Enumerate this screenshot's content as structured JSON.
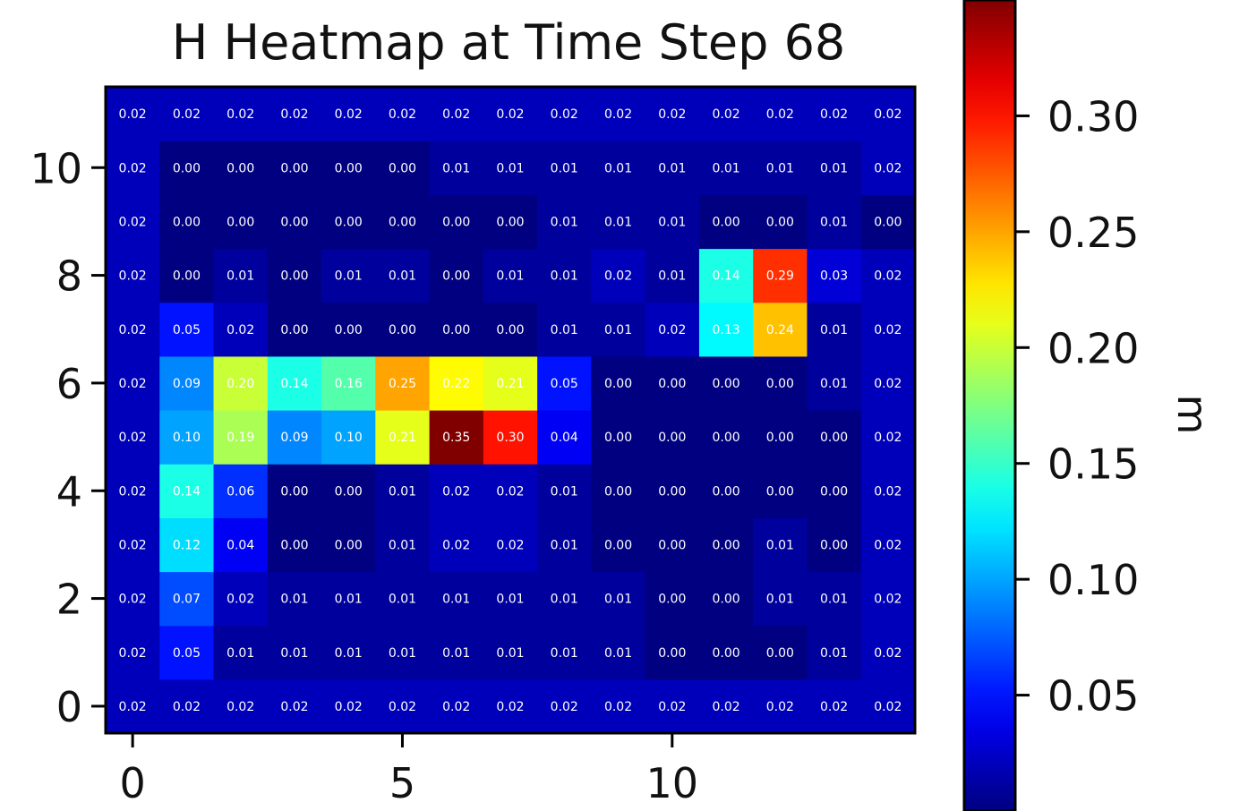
{
  "chart_data": {
    "type": "heatmap",
    "title": "H Heatmap at Time Step 68",
    "xlabel": "",
    "ylabel": "",
    "colormap": "jet",
    "vmin": 0.0,
    "vmax": 0.35,
    "x_ticks": [
      0,
      5,
      10
    ],
    "y_ticks": [
      0,
      2,
      4,
      6,
      8,
      10
    ],
    "colorbar": {
      "label": "m",
      "ticks": [
        "0.05",
        "0.10",
        "0.15",
        "0.20",
        "0.25",
        "0.30"
      ]
    },
    "grid": false,
    "rows_bottom_to_top": [
      [
        0.02,
        0.02,
        0.02,
        0.02,
        0.02,
        0.02,
        0.02,
        0.02,
        0.02,
        0.02,
        0.02,
        0.02,
        0.02,
        0.02,
        0.02
      ],
      [
        0.02,
        0.05,
        0.01,
        0.01,
        0.01,
        0.01,
        0.01,
        0.01,
        0.01,
        0.01,
        0.0,
        0.0,
        0.0,
        0.01,
        0.02
      ],
      [
        0.02,
        0.07,
        0.02,
        0.01,
        0.01,
        0.01,
        0.01,
        0.01,
        0.01,
        0.01,
        0.0,
        0.0,
        0.01,
        0.01,
        0.02
      ],
      [
        0.02,
        0.12,
        0.04,
        0.0,
        0.0,
        0.01,
        0.02,
        0.02,
        0.01,
        0.0,
        0.0,
        0.0,
        0.01,
        0.0,
        0.02
      ],
      [
        0.02,
        0.14,
        0.06,
        0.0,
        0.0,
        0.01,
        0.02,
        0.02,
        0.01,
        0.0,
        0.0,
        0.0,
        0.0,
        0.0,
        0.02
      ],
      [
        0.02,
        0.1,
        0.19,
        0.09,
        0.1,
        0.21,
        0.35,
        0.3,
        0.04,
        0.0,
        0.0,
        0.0,
        0.0,
        0.0,
        0.02
      ],
      [
        0.02,
        0.09,
        0.2,
        0.14,
        0.16,
        0.25,
        0.22,
        0.21,
        0.05,
        0.0,
        0.0,
        0.0,
        0.0,
        0.01,
        0.02
      ],
      [
        0.02,
        0.05,
        0.02,
        0.0,
        0.0,
        0.0,
        0.0,
        0.0,
        0.01,
        0.01,
        0.02,
        0.13,
        0.24,
        0.01,
        0.02
      ],
      [
        0.02,
        0.0,
        0.01,
        0.0,
        0.01,
        0.01,
        0.0,
        0.01,
        0.01,
        0.02,
        0.01,
        0.14,
        0.29,
        0.03,
        0.02
      ],
      [
        0.02,
        0.0,
        0.0,
        0.0,
        0.0,
        0.0,
        0.0,
        0.0,
        0.01,
        0.01,
        0.01,
        0.0,
        0.0,
        0.01,
        0.0
      ],
      [
        0.02,
        0.0,
        0.0,
        0.0,
        0.0,
        0.0,
        0.01,
        0.01,
        0.01,
        0.01,
        0.01,
        0.01,
        0.01,
        0.01,
        0.02
      ],
      [
        0.02,
        0.02,
        0.02,
        0.02,
        0.02,
        0.02,
        0.02,
        0.02,
        0.02,
        0.02,
        0.02,
        0.02,
        0.02,
        0.02,
        0.02
      ]
    ]
  }
}
